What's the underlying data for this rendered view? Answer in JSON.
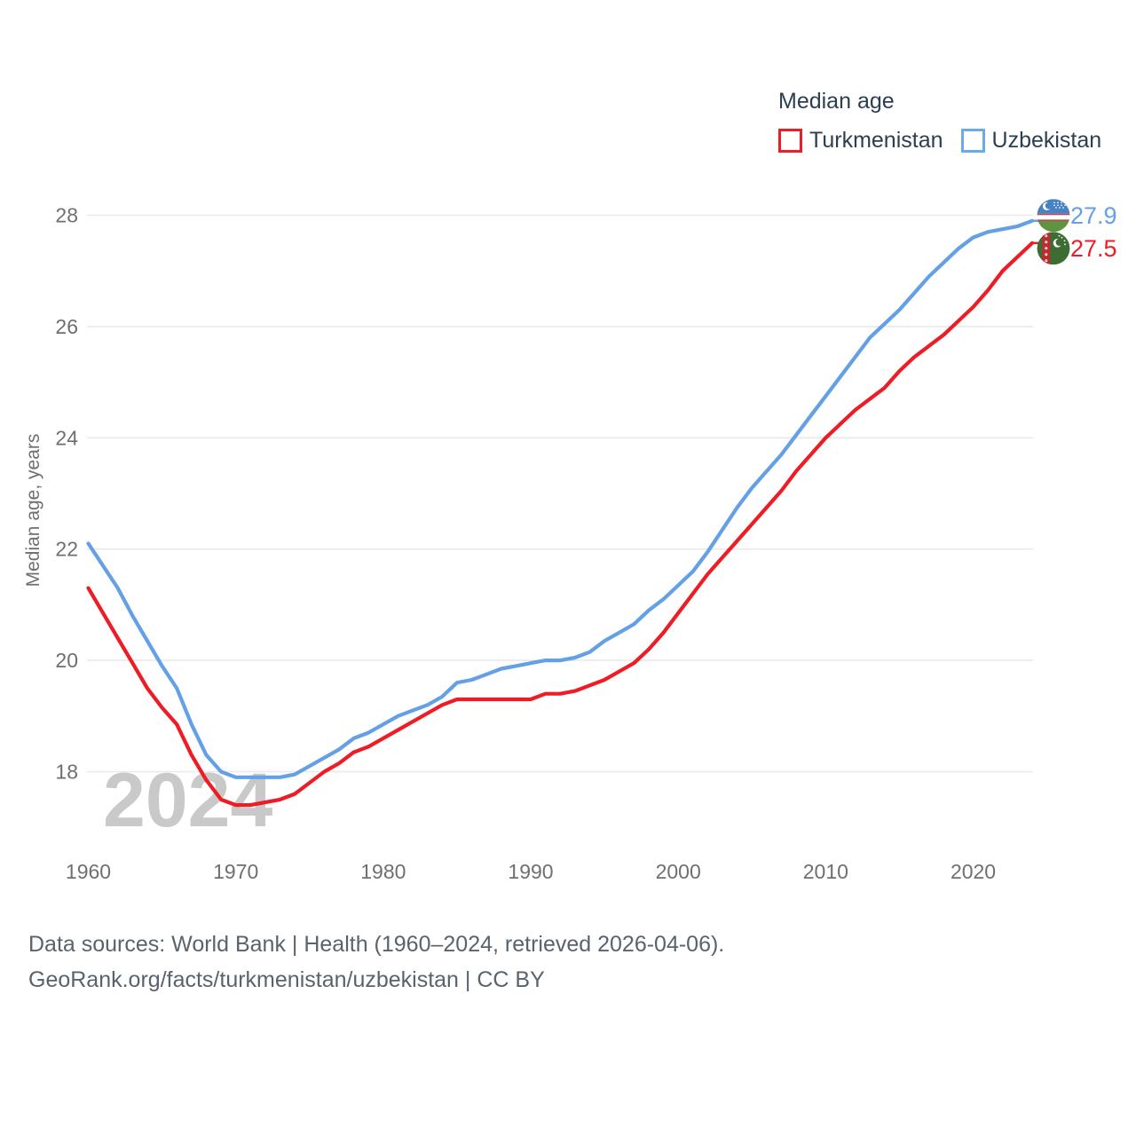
{
  "legend": {
    "title": "Median age",
    "items": [
      {
        "label": "Turkmenistan",
        "color": "#ee1c25"
      },
      {
        "label": "Uzbekistan",
        "color": "#6babe8"
      }
    ]
  },
  "watermark": "2024",
  "y_axis": {
    "title": "Median age, years",
    "ticks": [
      "28",
      "26",
      "24",
      "22",
      "20",
      "18"
    ]
  },
  "x_axis": {
    "ticks": [
      "1960",
      "1970",
      "1980",
      "1990",
      "2000",
      "2010",
      "2020"
    ]
  },
  "footer": {
    "line1": "Data sources: World Bank | Health (1960–2024, retrieved 2026-04-06).",
    "line2": "GeoRank.org/facts/turkmenistan/uzbekistan | CC BY"
  },
  "chart_data": {
    "type": "line",
    "title": "Median age",
    "xlabel": "",
    "ylabel": "Median age, years",
    "grid": "horizontal",
    "legend_position": "top-right",
    "x_range": [
      1960,
      2024
    ],
    "y_ticks": [
      18,
      20,
      22,
      24,
      26,
      28
    ],
    "ylim": [
      17.0,
      28.6
    ],
    "x": [
      1960,
      1961,
      1962,
      1963,
      1964,
      1965,
      1966,
      1967,
      1968,
      1969,
      1970,
      1971,
      1972,
      1973,
      1974,
      1975,
      1976,
      1977,
      1978,
      1979,
      1980,
      1981,
      1982,
      1983,
      1984,
      1985,
      1986,
      1987,
      1988,
      1989,
      1990,
      1991,
      1992,
      1993,
      1994,
      1995,
      1996,
      1997,
      1998,
      1999,
      2000,
      2001,
      2002,
      2003,
      2004,
      2005,
      2006,
      2007,
      2008,
      2009,
      2010,
      2011,
      2012,
      2013,
      2014,
      2015,
      2016,
      2017,
      2018,
      2019,
      2020,
      2021,
      2022,
      2023,
      2024
    ],
    "series": [
      {
        "name": "Turkmenistan",
        "color": "#ee1c25",
        "end_label": "27.5",
        "flag": "turkmenistan",
        "values": [
          21.3,
          20.85,
          20.4,
          19.95,
          19.5,
          19.15,
          18.85,
          18.3,
          17.85,
          17.5,
          17.4,
          17.4,
          17.45,
          17.5,
          17.6,
          17.8,
          18.0,
          18.15,
          18.35,
          18.45,
          18.6,
          18.75,
          18.9,
          19.05,
          19.2,
          19.3,
          19.3,
          19.3,
          19.3,
          19.3,
          19.3,
          19.4,
          19.4,
          19.45,
          19.55,
          19.65,
          19.8,
          19.95,
          20.2,
          20.5,
          20.85,
          21.2,
          21.55,
          21.85,
          22.15,
          22.45,
          22.75,
          23.05,
          23.4,
          23.7,
          24.0,
          24.25,
          24.5,
          24.7,
          24.9,
          25.2,
          25.45,
          25.65,
          25.85,
          26.1,
          26.35,
          26.65,
          27.0,
          27.25,
          27.5
        ]
      },
      {
        "name": "Uzbekistan",
        "color": "#64a0e6",
        "end_label": "27.9",
        "flag": "uzbekistan",
        "values": [
          22.1,
          21.7,
          21.3,
          20.8,
          20.35,
          19.9,
          19.5,
          18.85,
          18.3,
          18.0,
          17.9,
          17.9,
          17.9,
          17.9,
          17.95,
          18.1,
          18.25,
          18.4,
          18.6,
          18.7,
          18.85,
          19.0,
          19.1,
          19.2,
          19.35,
          19.6,
          19.65,
          19.75,
          19.85,
          19.9,
          19.95,
          20.0,
          20.0,
          20.05,
          20.15,
          20.35,
          20.5,
          20.65,
          20.9,
          21.1,
          21.35,
          21.6,
          21.95,
          22.35,
          22.75,
          23.1,
          23.4,
          23.7,
          24.05,
          24.4,
          24.75,
          25.1,
          25.45,
          25.8,
          26.05,
          26.3,
          26.6,
          26.9,
          27.15,
          27.4,
          27.6,
          27.7,
          27.75,
          27.8,
          27.9
        ]
      }
    ]
  }
}
